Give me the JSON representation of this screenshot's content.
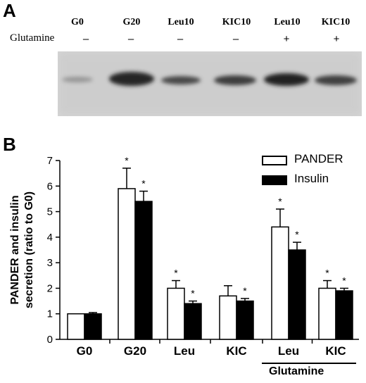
{
  "panel_a": {
    "letter": "A",
    "row_label": "Glutamine",
    "lanes": [
      {
        "label": "G0",
        "glutamine": "–"
      },
      {
        "label": "G20",
        "glutamine": "–"
      },
      {
        "label": "Leu10",
        "glutamine": "–"
      },
      {
        "label": "KIC10",
        "glutamine": "–"
      },
      {
        "label": "Leu10",
        "glutamine": "+"
      },
      {
        "label": "KIC10",
        "glutamine": "+"
      }
    ]
  },
  "panel_b": {
    "letter": "B",
    "group_caption": "Glutamine"
  },
  "colors": {
    "pander": "#ffffff",
    "insulin": "#000000",
    "outline": "#000000",
    "blot_background": "#d6d6d6",
    "band": "#3a3a3a"
  },
  "chart_data": {
    "type": "bar",
    "categories": [
      "G0",
      "G20",
      "Leu",
      "KIC",
      "Leu",
      "KIC"
    ],
    "series": [
      {
        "name": "PANDER",
        "values": [
          1.0,
          5.9,
          2.0,
          1.7,
          4.4,
          2.0
        ],
        "errors": [
          0,
          0.8,
          0.3,
          0.4,
          0.7,
          0.3
        ],
        "significant": [
          false,
          true,
          true,
          false,
          true,
          true
        ]
      },
      {
        "name": "Insulin",
        "values": [
          1.0,
          5.4,
          1.4,
          1.5,
          3.5,
          1.9
        ],
        "errors": [
          0.05,
          0.4,
          0.1,
          0.1,
          0.3,
          0.1
        ],
        "significant": [
          false,
          true,
          true,
          true,
          true,
          true
        ]
      }
    ],
    "significance_marker": "*",
    "ylabel": "PANDER and insulin secretion (ratio to G0)",
    "ylabel_lines": [
      "PANDER and insulin",
      "secretion (ratio to G0)"
    ],
    "ylim": [
      0,
      7
    ],
    "yticks": [
      "0",
      "1",
      "2",
      "3",
      "4",
      "5",
      "6",
      "7"
    ],
    "legend_position": "top-right",
    "grid": false
  }
}
